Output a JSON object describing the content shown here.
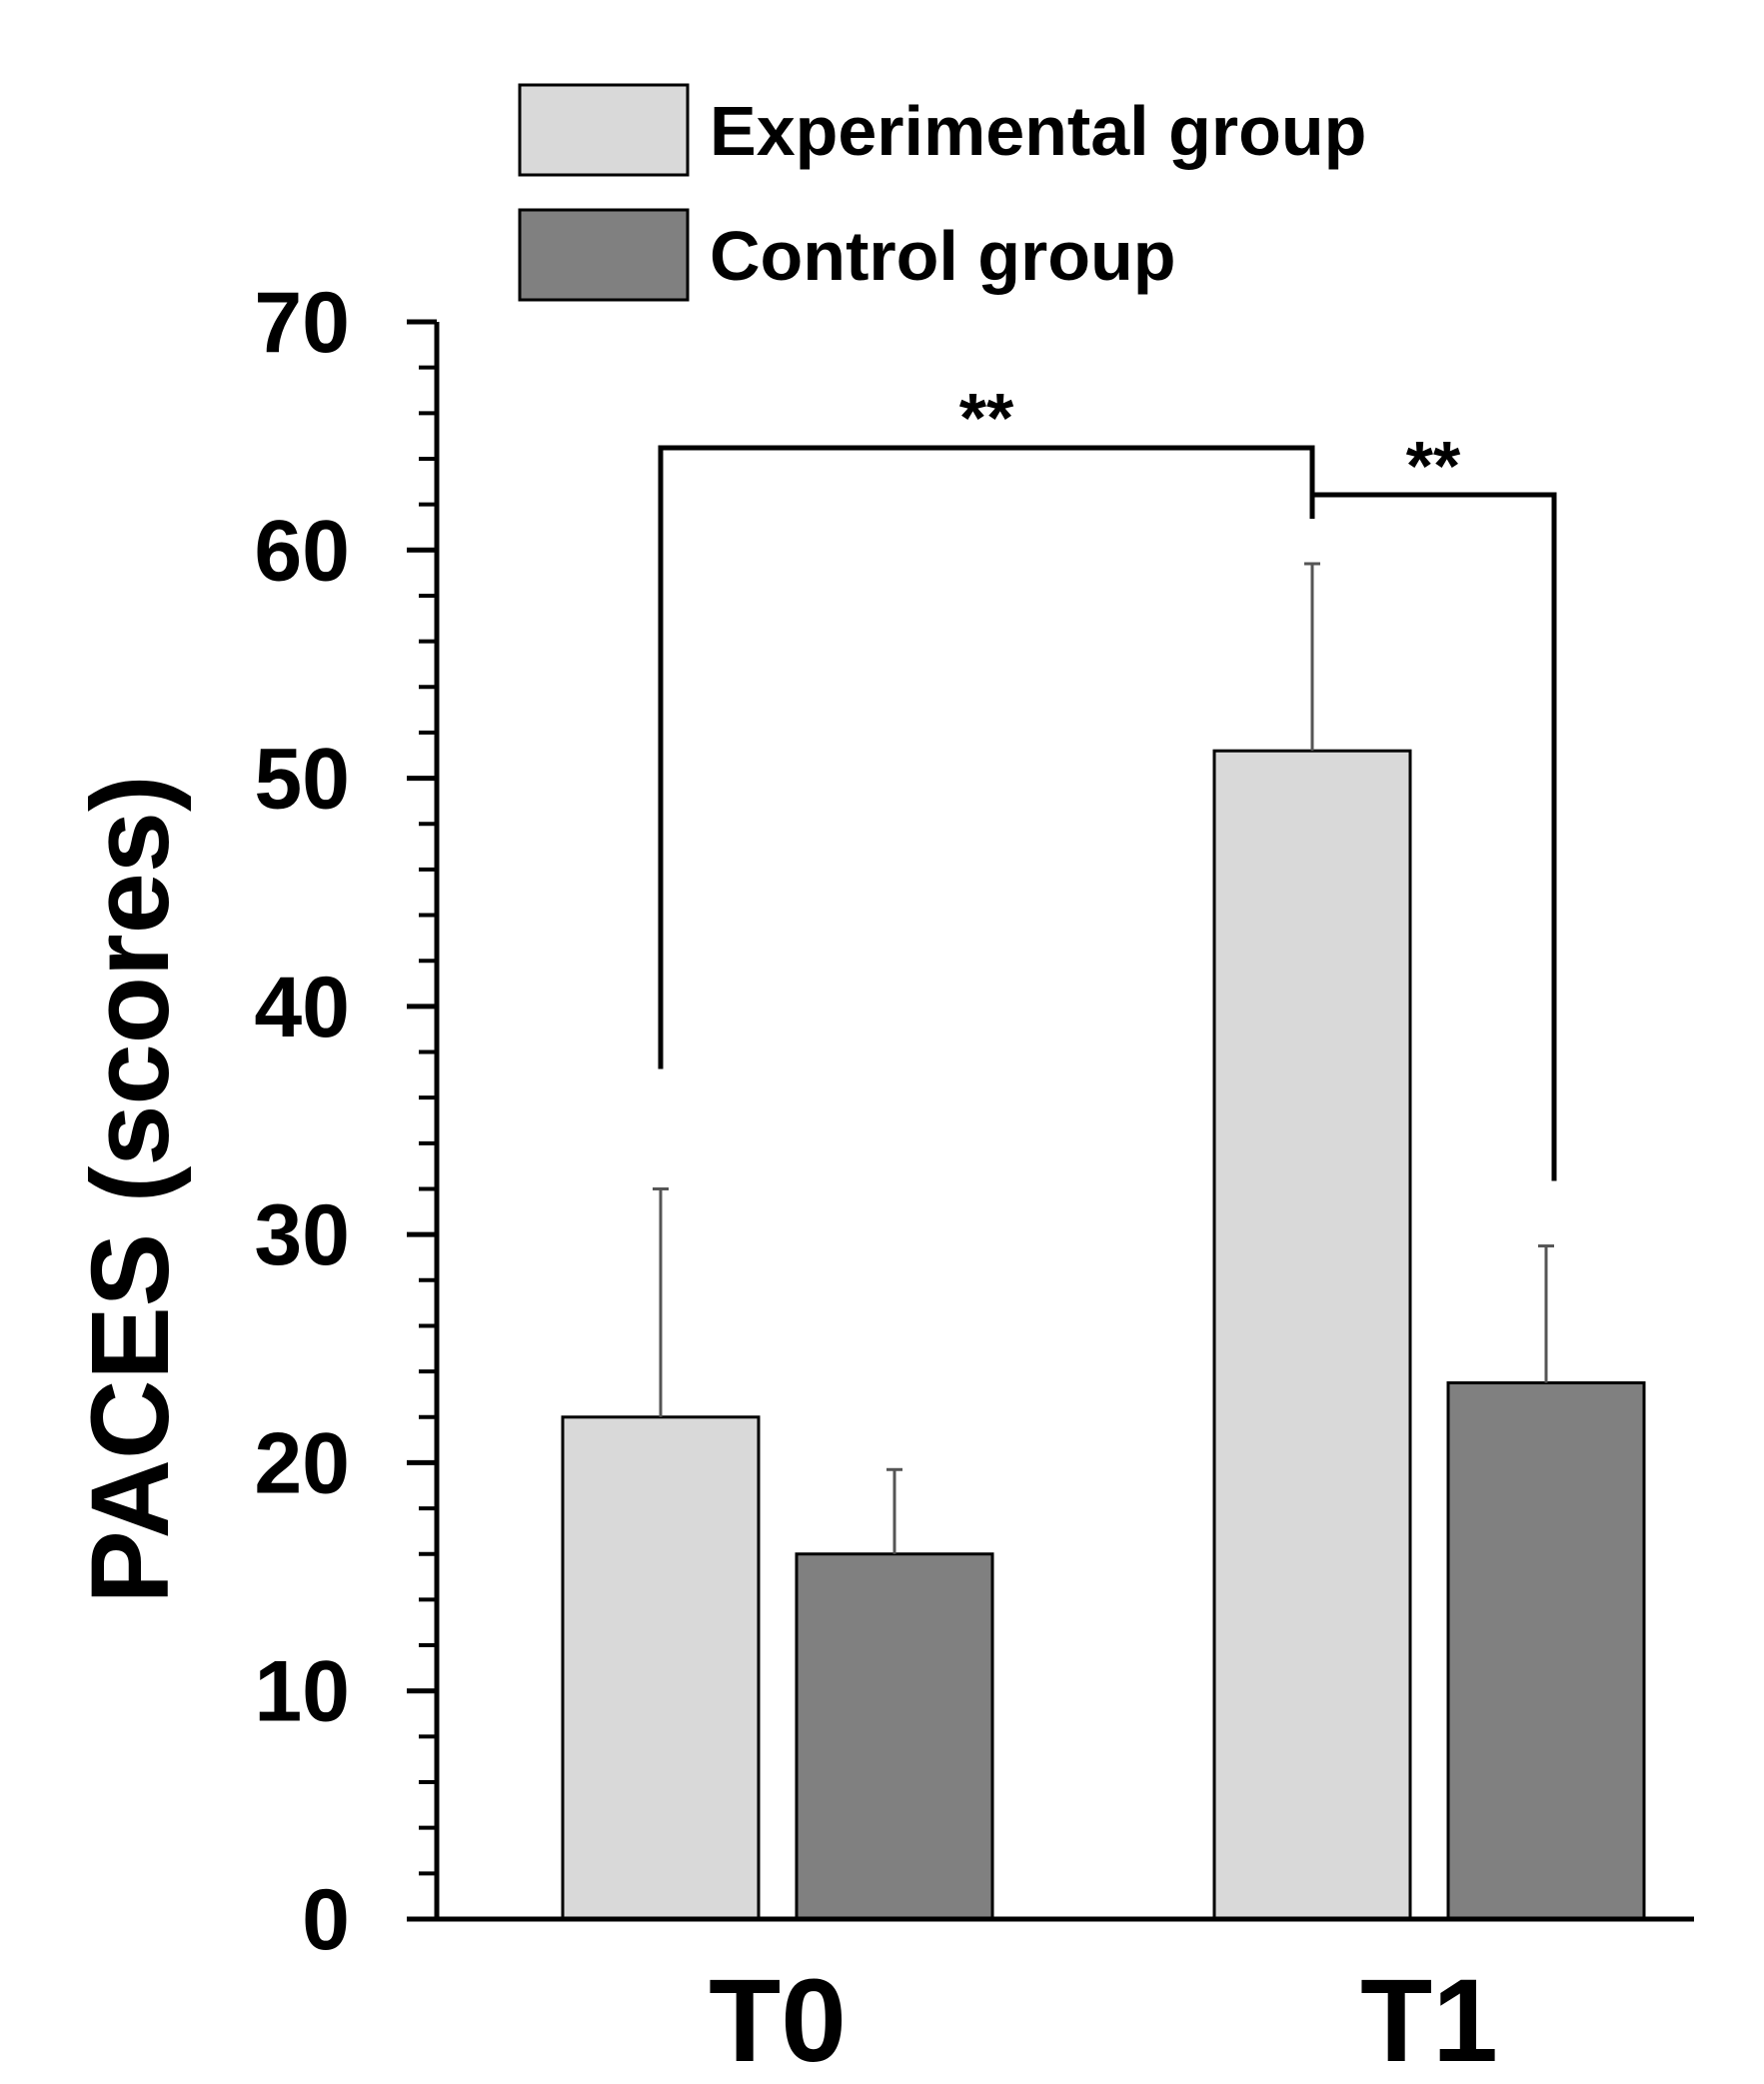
{
  "chart_data": {
    "type": "bar",
    "title": "",
    "xlabel": "",
    "ylabel": "PACES (scores)",
    "ylim": [
      0,
      70
    ],
    "y_major_ticks": [
      0,
      10,
      20,
      30,
      40,
      50,
      60,
      70
    ],
    "y_minor_step": 2,
    "categories": [
      "T0",
      "T1"
    ],
    "series": [
      {
        "name": "Experimental group",
        "color": "#d9d9d9",
        "values": [
          22.0,
          51.2
        ],
        "error": [
          10.0,
          8.2
        ]
      },
      {
        "name": "Control group",
        "color": "#808080",
        "values": [
          16.0,
          23.5
        ],
        "error": [
          3.7,
          6.0
        ]
      }
    ],
    "legend_position": "top",
    "significance": [
      {
        "label": "**",
        "from": "T0 Experimental group",
        "to": "T1 Experimental group"
      },
      {
        "label": "**",
        "from": "T1 Experimental group",
        "to": "T1 Control group"
      }
    ]
  }
}
